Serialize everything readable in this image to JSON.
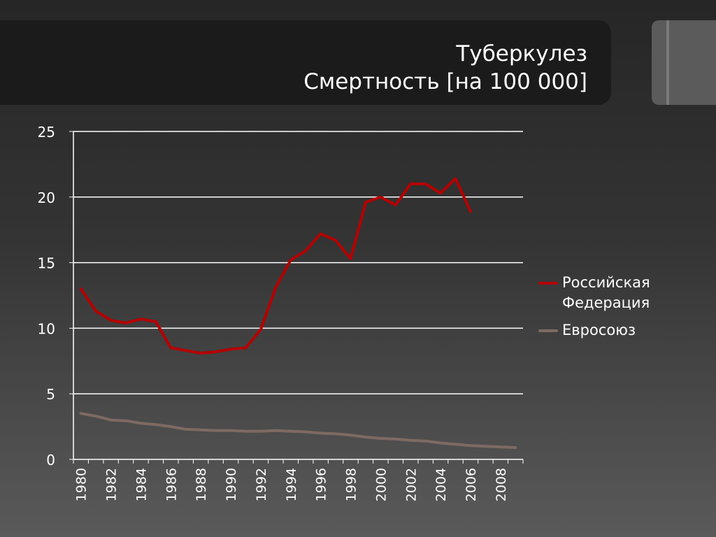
{
  "title": {
    "line1": "Туберкулез",
    "line2": "Смертность [на 100 000]"
  },
  "colors": {
    "russia": "#b50000",
    "eu": "#7e6a62",
    "grid": "#ffffff",
    "axis_text": "#ffffff"
  },
  "chart_data": {
    "type": "line",
    "ylim": [
      0,
      25
    ],
    "yticks": [
      0,
      5,
      10,
      15,
      20,
      25
    ],
    "xlim": [
      1980,
      2009
    ],
    "xticks": [
      "1980",
      "1982",
      "1984",
      "1986",
      "1988",
      "1990",
      "1992",
      "1994",
      "1996",
      "1998",
      "2000",
      "2002",
      "2004",
      "2006",
      "2008"
    ],
    "grid": "horizontal",
    "legend_position": "right",
    "series": [
      {
        "name": "Российская Федерация",
        "color": "#b50000",
        "x": [
          1980,
          1981,
          1982,
          1983,
          1984,
          1985,
          1986,
          1987,
          1988,
          1989,
          1990,
          1991,
          1992,
          1993,
          1994,
          1995,
          1996,
          1997,
          1998,
          1999,
          2000,
          2001,
          2002,
          2003,
          2004,
          2005,
          2006
        ],
        "values": [
          13.0,
          11.3,
          10.6,
          10.4,
          10.7,
          10.5,
          8.5,
          8.3,
          8.1,
          8.2,
          8.4,
          8.5,
          9.9,
          13.1,
          15.2,
          15.9,
          17.2,
          16.7,
          15.3,
          19.6,
          20.0,
          19.4,
          21.0,
          21.0,
          20.3,
          21.4,
          18.9
        ]
      },
      {
        "name": "Евросоюз",
        "color": "#7e6a62",
        "x": [
          1980,
          1981,
          1982,
          1983,
          1984,
          1985,
          1986,
          1987,
          1988,
          1989,
          1990,
          1991,
          1992,
          1993,
          1994,
          1995,
          1996,
          1997,
          1998,
          1999,
          2000,
          2001,
          2002,
          2003,
          2004,
          2005,
          2006,
          2007,
          2008,
          2009
        ],
        "values": [
          3.5,
          3.3,
          3.0,
          2.95,
          2.75,
          2.65,
          2.5,
          2.3,
          2.25,
          2.2,
          2.2,
          2.15,
          2.15,
          2.2,
          2.15,
          2.1,
          2.0,
          1.95,
          1.85,
          1.7,
          1.6,
          1.55,
          1.45,
          1.4,
          1.25,
          1.15,
          1.05,
          1.0,
          0.95,
          0.9
        ]
      }
    ]
  }
}
